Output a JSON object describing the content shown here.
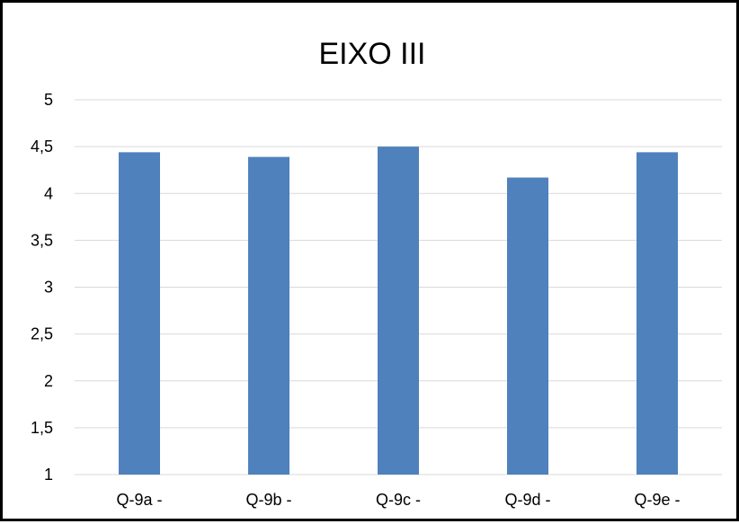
{
  "chart_data": {
    "type": "bar",
    "title": "EIXO III",
    "xlabel": "",
    "ylabel": "",
    "categories": [
      "Q-9a -",
      "Q-9b -",
      "Q-9c -",
      "Q-9d -",
      "Q-9e -"
    ],
    "values": [
      4.44,
      4.39,
      4.5,
      4.17,
      4.44
    ],
    "ylim": [
      1,
      5
    ],
    "y_ticks": [
      1,
      1.5,
      2,
      2.5,
      3,
      3.5,
      4,
      4.5,
      5
    ],
    "y_tick_labels": [
      "1",
      "1,5",
      "2",
      "2,5",
      "3",
      "3,5",
      "4",
      "4,5",
      "5"
    ],
    "grid": true,
    "legend": "none",
    "bar_color": "#4f81bd",
    "grid_color": "#d9d9d9"
  }
}
